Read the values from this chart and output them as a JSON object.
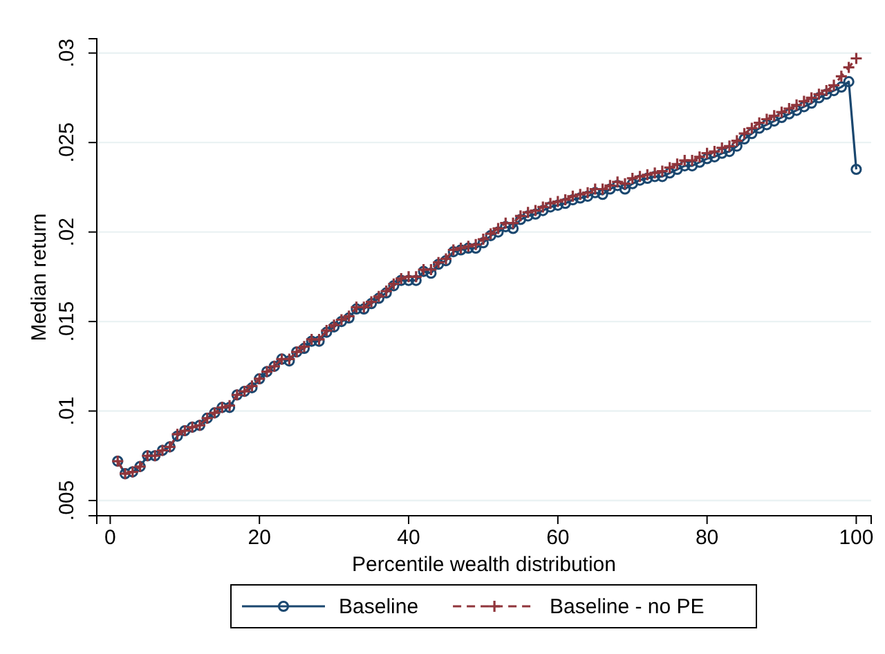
{
  "chart_data": {
    "type": "line",
    "xlabel": "Percentile wealth distribution",
    "ylabel": "Median return",
    "x": [
      1,
      2,
      3,
      4,
      5,
      6,
      7,
      8,
      9,
      10,
      11,
      12,
      13,
      14,
      15,
      16,
      17,
      18,
      19,
      20,
      21,
      22,
      23,
      24,
      25,
      26,
      27,
      28,
      29,
      30,
      31,
      32,
      33,
      34,
      35,
      36,
      37,
      38,
      39,
      40,
      41,
      42,
      43,
      44,
      45,
      46,
      47,
      48,
      49,
      50,
      51,
      52,
      53,
      54,
      55,
      56,
      57,
      58,
      59,
      60,
      61,
      62,
      63,
      64,
      65,
      66,
      67,
      68,
      69,
      70,
      71,
      72,
      73,
      74,
      75,
      76,
      77,
      78,
      79,
      80,
      81,
      82,
      83,
      84,
      85,
      86,
      87,
      88,
      89,
      90,
      91,
      92,
      93,
      94,
      95,
      96,
      97,
      98,
      99,
      100
    ],
    "xlim": [
      -1.8,
      102
    ],
    "xticks": [
      0,
      20,
      40,
      60,
      80,
      100
    ],
    "ylim": [
      0.00415,
      0.0308
    ],
    "yticks": [
      {
        "value": 0.005,
        "label": ".005"
      },
      {
        "value": 0.01,
        "label": ".01"
      },
      {
        "value": 0.015,
        "label": ".015"
      },
      {
        "value": 0.02,
        "label": ".02"
      },
      {
        "value": 0.025,
        "label": ".025"
      },
      {
        "value": 0.03,
        "label": ".03"
      }
    ],
    "grid": "y",
    "legend": "bottom",
    "series": [
      {
        "name": "Baseline",
        "color": "#1a476f",
        "marker": "circle",
        "line_style": "solid",
        "values": [
          0.0072,
          0.0065,
          0.0066,
          0.0069,
          0.0075,
          0.0075,
          0.0078,
          0.008,
          0.0086,
          0.0089,
          0.0091,
          0.0092,
          0.0096,
          0.0099,
          0.0102,
          0.0102,
          0.0109,
          0.0111,
          0.0113,
          0.0118,
          0.0122,
          0.0125,
          0.0129,
          0.0128,
          0.0133,
          0.0135,
          0.0139,
          0.0139,
          0.0144,
          0.0147,
          0.015,
          0.0152,
          0.0157,
          0.0157,
          0.016,
          0.0163,
          0.0166,
          0.017,
          0.0173,
          0.0173,
          0.0173,
          0.0178,
          0.0177,
          0.0182,
          0.0184,
          0.0189,
          0.019,
          0.0191,
          0.0191,
          0.0194,
          0.0198,
          0.02,
          0.0203,
          0.0202,
          0.0207,
          0.0209,
          0.021,
          0.0212,
          0.0214,
          0.0215,
          0.0216,
          0.0218,
          0.0219,
          0.022,
          0.0222,
          0.0221,
          0.0224,
          0.0226,
          0.0224,
          0.0227,
          0.0229,
          0.023,
          0.0231,
          0.0231,
          0.0233,
          0.0235,
          0.0237,
          0.0237,
          0.0239,
          0.0241,
          0.0242,
          0.0244,
          0.0245,
          0.0248,
          0.0252,
          0.0255,
          0.0258,
          0.026,
          0.0262,
          0.0264,
          0.0266,
          0.0268,
          0.027,
          0.0272,
          0.0275,
          0.0277,
          0.0279,
          0.0281,
          0.0284,
          0.0235
        ]
      },
      {
        "name": "Baseline - no PE",
        "color": "#90353b",
        "marker": "cross",
        "line_style": "dashed",
        "values": [
          0.0072,
          0.0065,
          0.0066,
          0.0069,
          0.0075,
          0.0075,
          0.0078,
          0.008,
          0.0087,
          0.0089,
          0.0091,
          0.0092,
          0.0096,
          0.0099,
          0.0102,
          0.0103,
          0.0109,
          0.0111,
          0.0114,
          0.0118,
          0.0122,
          0.0125,
          0.0129,
          0.0129,
          0.0133,
          0.0136,
          0.014,
          0.014,
          0.0145,
          0.0148,
          0.0151,
          0.0153,
          0.0158,
          0.0158,
          0.0161,
          0.0164,
          0.0167,
          0.0171,
          0.0174,
          0.0175,
          0.0175,
          0.0179,
          0.0179,
          0.0183,
          0.0185,
          0.019,
          0.0191,
          0.0192,
          0.0193,
          0.0196,
          0.0199,
          0.0202,
          0.0205,
          0.0205,
          0.0209,
          0.0211,
          0.0212,
          0.0214,
          0.0216,
          0.0217,
          0.0218,
          0.022,
          0.0221,
          0.0222,
          0.0224,
          0.0224,
          0.0226,
          0.0228,
          0.0227,
          0.023,
          0.0231,
          0.0232,
          0.0233,
          0.0234,
          0.0236,
          0.0238,
          0.024,
          0.024,
          0.0242,
          0.0244,
          0.0245,
          0.0247,
          0.0248,
          0.0251,
          0.0255,
          0.0258,
          0.0261,
          0.0263,
          0.0265,
          0.0267,
          0.0269,
          0.0271,
          0.0273,
          0.0275,
          0.0277,
          0.0279,
          0.0282,
          0.0287,
          0.0292,
          0.0297
        ]
      }
    ]
  }
}
